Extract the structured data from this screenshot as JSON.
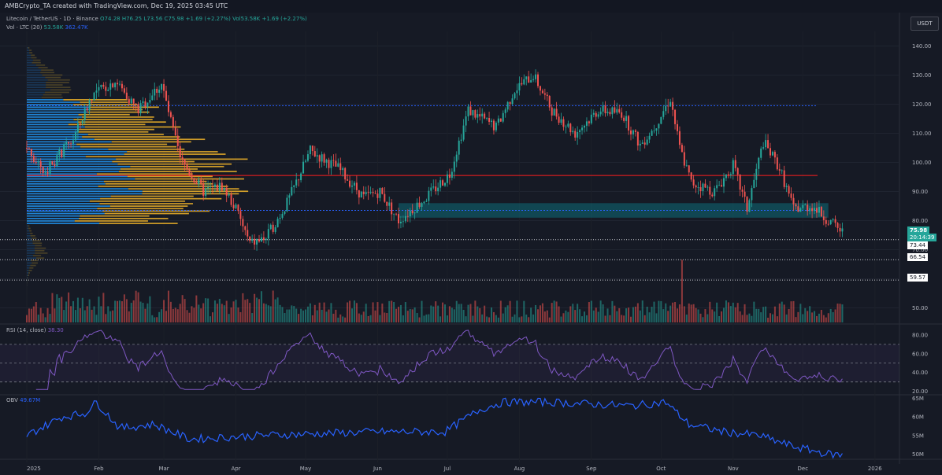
{
  "header": {
    "caption": "AMBCrypto_TA created with TradingView.com, Dec 19, 2025 03:45 UTC"
  },
  "legend": {
    "symbol": "Litecoin / TetherUS · 1D · Binance",
    "ohlc": "O74.28 H76.25 L73.56 C75.98 +1.69 (+2.27%)",
    "vol_inline": "Vol53.58K +1.69 (+2.27%)",
    "vol_label": "Vol · LTC (20)",
    "vol_value": "53.58K",
    "vol_ma": "362.47K",
    "rsi_label": "RSI (14, close)",
    "rsi_value": "38.30",
    "obv_label": "OBV",
    "obv_value": "49.67M"
  },
  "currency_button": "USDT",
  "price_labels": {
    "last": "75.98",
    "countdown": "20:14:39",
    "level1": "73.44",
    "level2": "66.54",
    "level3": "59.57"
  },
  "colors": {
    "background": "#161a25",
    "up": "#26a69a",
    "down": "#ef5350",
    "profile_hi": "#f0b429",
    "profile_lo": "#2196f3",
    "poc_line": "#ff1e1e",
    "zone": "#0f6b78",
    "rsi": "#7e57c2",
    "obv": "#2962ff"
  },
  "chart_data": [
    {
      "type": "candlestick",
      "title": "Litecoin / TetherUS · 1D · Binance",
      "y_ticks": [
        50,
        60,
        70,
        80,
        90,
        100,
        110,
        120,
        130,
        140
      ],
      "ylim": [
        45,
        145
      ],
      "x_ticks": [
        "2025",
        "Feb",
        "Mar",
        "Apr",
        "May",
        "Jun",
        "Jul",
        "Aug",
        "Sep",
        "Oct",
        "Nov",
        "Dec",
        "2026"
      ],
      "waypoints": [
        {
          "d": 0,
          "p": 105
        },
        {
          "d": 8,
          "p": 97
        },
        {
          "d": 20,
          "p": 108
        },
        {
          "d": 28,
          "p": 123
        },
        {
          "d": 38,
          "p": 128
        },
        {
          "d": 48,
          "p": 118
        },
        {
          "d": 58,
          "p": 127
        },
        {
          "d": 66,
          "p": 101
        },
        {
          "d": 76,
          "p": 90
        },
        {
          "d": 84,
          "p": 92
        },
        {
          "d": 90,
          "p": 84
        },
        {
          "d": 96,
          "p": 72
        },
        {
          "d": 103,
          "p": 74
        },
        {
          "d": 112,
          "p": 86
        },
        {
          "d": 122,
          "p": 104
        },
        {
          "d": 134,
          "p": 98
        },
        {
          "d": 145,
          "p": 88
        },
        {
          "d": 152,
          "p": 90
        },
        {
          "d": 160,
          "p": 80
        },
        {
          "d": 172,
          "p": 88
        },
        {
          "d": 182,
          "p": 96
        },
        {
          "d": 190,
          "p": 118
        },
        {
          "d": 202,
          "p": 112
        },
        {
          "d": 210,
          "p": 125
        },
        {
          "d": 218,
          "p": 130
        },
        {
          "d": 226,
          "p": 118
        },
        {
          "d": 236,
          "p": 110
        },
        {
          "d": 246,
          "p": 118
        },
        {
          "d": 256,
          "p": 117
        },
        {
          "d": 264,
          "p": 106
        },
        {
          "d": 270,
          "p": 112
        },
        {
          "d": 277,
          "p": 122
        },
        {
          "d": 281,
          "p": 105
        },
        {
          "d": 286,
          "p": 93
        },
        {
          "d": 296,
          "p": 90
        },
        {
          "d": 304,
          "p": 99
        },
        {
          "d": 310,
          "p": 84
        },
        {
          "d": 317,
          "p": 107
        },
        {
          "d": 324,
          "p": 98
        },
        {
          "d": 330,
          "p": 84
        },
        {
          "d": 338,
          "p": 85
        },
        {
          "d": 345,
          "p": 80
        },
        {
          "d": 351,
          "p": 76
        }
      ],
      "horizontal_levels": [
        {
          "value": 119.5,
          "style": "dotted-blue"
        },
        {
          "value": 95.5,
          "style": "solid-red"
        },
        {
          "value": 83.5,
          "style": "dotted-blue"
        },
        {
          "value": 73.44,
          "style": "dotted-gray"
        },
        {
          "value": 66.54,
          "style": "dotted-gray"
        },
        {
          "value": 59.57,
          "style": "dotted-gray"
        }
      ],
      "zone": {
        "low": 81,
        "high": 86,
        "from_day": 160,
        "to_day": 345
      }
    },
    {
      "type": "line",
      "name": "RSI (14, close)",
      "y_ticks": [
        20,
        40,
        60,
        80
      ],
      "ylim": [
        18,
        90
      ],
      "bands": [
        30,
        50,
        70
      ],
      "last": 38.3
    },
    {
      "type": "line",
      "name": "OBV",
      "y_ticks": [
        "50M",
        "55M",
        "60M",
        "65M"
      ],
      "ylim": [
        49,
        66
      ],
      "waypoints": [
        {
          "d": 0,
          "p": 55
        },
        {
          "d": 15,
          "p": 60
        },
        {
          "d": 25,
          "p": 61
        },
        {
          "d": 30,
          "p": 64
        },
        {
          "d": 40,
          "p": 57
        },
        {
          "d": 55,
          "p": 58
        },
        {
          "d": 70,
          "p": 54
        },
        {
          "d": 100,
          "p": 55
        },
        {
          "d": 150,
          "p": 56
        },
        {
          "d": 180,
          "p": 56
        },
        {
          "d": 195,
          "p": 62
        },
        {
          "d": 205,
          "p": 64
        },
        {
          "d": 225,
          "p": 64
        },
        {
          "d": 260,
          "p": 63
        },
        {
          "d": 275,
          "p": 64
        },
        {
          "d": 285,
          "p": 58
        },
        {
          "d": 300,
          "p": 56
        },
        {
          "d": 315,
          "p": 55
        },
        {
          "d": 330,
          "p": 52
        },
        {
          "d": 345,
          "p": 50
        },
        {
          "d": 351,
          "p": 49.67
        }
      ]
    }
  ]
}
